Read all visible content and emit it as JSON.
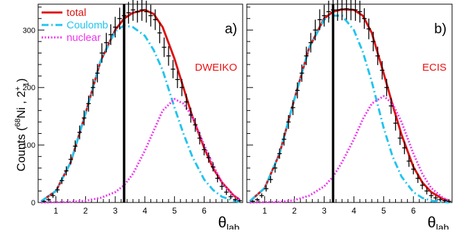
{
  "figure": {
    "ylabel_main": "Counts (",
    "ylabel_sup1": "68",
    "ylabel_mid": "Ni , 2",
    "ylabel_sup2": "+",
    "ylabel_sub": "1",
    "ylabel_end": ")"
  },
  "legend": [
    {
      "label": "total",
      "color": "#dd1111",
      "dash": "solid"
    },
    {
      "label": "Coulomb",
      "color": "#22c4ee",
      "dash": "dashdot"
    },
    {
      "label": "nuclear",
      "color": "#ee33ee",
      "dash": "dotted"
    }
  ],
  "colors": {
    "total": "#dd1111",
    "coulomb": "#22c4ee",
    "nuclear": "#ee33ee",
    "data": "#000000",
    "code_label": "#ee1111"
  },
  "chart_data": [
    {
      "type": "line",
      "panel_label": "a)",
      "code_label": "DWEIKO",
      "xlabel_main": "θ",
      "xlabel_sub": "lab",
      "xlim": [
        0.4,
        7.3
      ],
      "ylim": [
        0,
        345
      ],
      "xticks": [
        1,
        2,
        3,
        4,
        5,
        6
      ],
      "yticks": [
        0,
        100,
        200,
        300
      ],
      "vline_x": 3.3,
      "data_points": {
        "x": [
          0.6,
          0.75,
          0.9,
          1.05,
          1.2,
          1.35,
          1.5,
          1.65,
          1.8,
          1.95,
          2.1,
          2.25,
          2.4,
          2.55,
          2.7,
          2.85,
          3.0,
          3.15,
          3.3,
          3.45,
          3.6,
          3.75,
          3.9,
          4.05,
          4.2,
          4.35,
          4.5,
          4.65,
          4.8,
          4.95,
          5.1,
          5.25,
          5.4,
          5.55,
          5.7,
          5.85,
          6.0,
          6.15,
          6.3,
          6.45,
          6.6,
          6.75,
          6.9,
          7.05,
          7.2
        ],
        "y": [
          2,
          5,
          12,
          22,
          38,
          55,
          75,
          98,
          122,
          147,
          172,
          200,
          225,
          260,
          278,
          292,
          305,
          320,
          325,
          330,
          335,
          332,
          335,
          332,
          325,
          318,
          295,
          270,
          255,
          232,
          214,
          200,
          175,
          152,
          135,
          112,
          92,
          78,
          62,
          42,
          28,
          18,
          10,
          5,
          3
        ],
        "yerr": [
          2,
          3,
          4,
          5,
          6,
          8,
          9,
          10,
          12,
          13,
          14,
          15,
          16,
          17,
          17,
          18,
          18,
          19,
          19,
          19,
          19,
          19,
          19,
          19,
          19,
          18,
          18,
          17,
          17,
          16,
          15,
          15,
          14,
          13,
          12,
          11,
          10,
          9,
          8,
          7,
          6,
          5,
          4,
          3,
          2
        ]
      },
      "series": [
        {
          "name": "total",
          "x": [
            0.5,
            1,
            1.5,
            2,
            2.5,
            3,
            3.3,
            3.6,
            4,
            4.3,
            4.6,
            5,
            5.3,
            5.6,
            6,
            6.3,
            6.6,
            7,
            7.2
          ],
          "y": [
            2,
            20,
            70,
            155,
            245,
            300,
            320,
            330,
            335,
            328,
            305,
            250,
            200,
            150,
            95,
            60,
            35,
            12,
            5
          ]
        },
        {
          "name": "Coulomb",
          "x": [
            0.5,
            1,
            1.5,
            2,
            2.5,
            3,
            3.3,
            3.6,
            4,
            4.3,
            4.6,
            5,
            5.3,
            5.6,
            6,
            6.3,
            6.6,
            7,
            7.2
          ],
          "y": [
            2,
            20,
            70,
            155,
            245,
            298,
            308,
            305,
            290,
            265,
            230,
            165,
            120,
            80,
            40,
            22,
            10,
            3,
            1
          ]
        },
        {
          "name": "nuclear",
          "x": [
            0.5,
            1,
            1.5,
            2,
            2.5,
            3,
            3.3,
            3.6,
            4,
            4.3,
            4.6,
            5,
            5.3,
            5.6,
            6,
            6.3,
            6.6,
            7,
            7.2
          ],
          "y": [
            0,
            0.5,
            1,
            3,
            8,
            18,
            30,
            50,
            90,
            125,
            160,
            180,
            172,
            150,
            100,
            65,
            35,
            12,
            5
          ]
        }
      ]
    },
    {
      "type": "line",
      "panel_label": "b)",
      "code_label": "ECIS",
      "xlabel_main": "θ",
      "xlabel_sub": "lab",
      "xlim": [
        0.4,
        7.3
      ],
      "ylim": [
        0,
        345
      ],
      "xticks": [
        1,
        2,
        3,
        4,
        5,
        6
      ],
      "yticks": [
        0,
        100,
        200,
        300
      ],
      "vline_x": 3.3,
      "data_points": {
        "x": [
          0.6,
          0.75,
          0.9,
          1.05,
          1.2,
          1.35,
          1.5,
          1.65,
          1.8,
          1.95,
          2.1,
          2.25,
          2.4,
          2.55,
          2.7,
          2.85,
          3.0,
          3.15,
          3.3,
          3.45,
          3.6,
          3.75,
          3.9,
          4.05,
          4.2,
          4.35,
          4.5,
          4.65,
          4.8,
          4.95,
          5.1,
          5.25,
          5.4,
          5.55,
          5.7,
          5.85,
          6.0,
          6.15,
          6.3,
          6.45,
          6.6,
          6.75,
          6.9,
          7.05,
          7.2
        ],
        "y": [
          2,
          5,
          12,
          24,
          40,
          60,
          85,
          110,
          140,
          165,
          195,
          225,
          255,
          278,
          300,
          318,
          325,
          332,
          335,
          335,
          336,
          337,
          336,
          335,
          332,
          320,
          302,
          280,
          255,
          230,
          200,
          168,
          138,
          112,
          95,
          72,
          58,
          42,
          30,
          20,
          12,
          8,
          5,
          3,
          2
        ],
        "yerr": [
          2,
          3,
          4,
          5,
          6,
          8,
          9,
          11,
          12,
          13,
          14,
          15,
          16,
          17,
          18,
          18,
          19,
          19,
          19,
          19,
          19,
          19,
          19,
          19,
          19,
          18,
          18,
          17,
          16,
          16,
          15,
          14,
          13,
          12,
          11,
          10,
          9,
          8,
          7,
          6,
          5,
          4,
          3,
          3,
          2
        ]
      },
      "series": [
        {
          "name": "total",
          "x": [
            0.5,
            1,
            1.5,
            2,
            2.5,
            3,
            3.3,
            3.6,
            4,
            4.3,
            4.6,
            5,
            5.3,
            5.6,
            6,
            6.3,
            6.6,
            7,
            7.2
          ],
          "y": [
            2,
            25,
            85,
            180,
            270,
            320,
            332,
            336,
            335,
            325,
            295,
            225,
            170,
            118,
            62,
            35,
            18,
            6,
            3
          ]
        },
        {
          "name": "Coulomb",
          "x": [
            0.5,
            1,
            1.5,
            2,
            2.5,
            3,
            3.3,
            3.6,
            4,
            4.3,
            4.6,
            5,
            5.3,
            5.6,
            6,
            6.3,
            6.6,
            7,
            7.2
          ],
          "y": [
            2,
            25,
            85,
            180,
            270,
            318,
            325,
            325,
            300,
            262,
            210,
            130,
            80,
            45,
            18,
            8,
            3,
            1,
            0
          ]
        },
        {
          "name": "nuclear",
          "x": [
            0.5,
            1,
            1.5,
            2,
            2.5,
            3,
            3.3,
            3.6,
            4,
            4.3,
            4.6,
            5,
            5.3,
            5.6,
            6,
            6.3,
            6.6,
            7,
            7.2
          ],
          "y": [
            0,
            0.5,
            1,
            4,
            12,
            28,
            45,
            70,
            110,
            145,
            172,
            185,
            172,
            140,
            85,
            50,
            25,
            8,
            3
          ]
        }
      ]
    }
  ]
}
